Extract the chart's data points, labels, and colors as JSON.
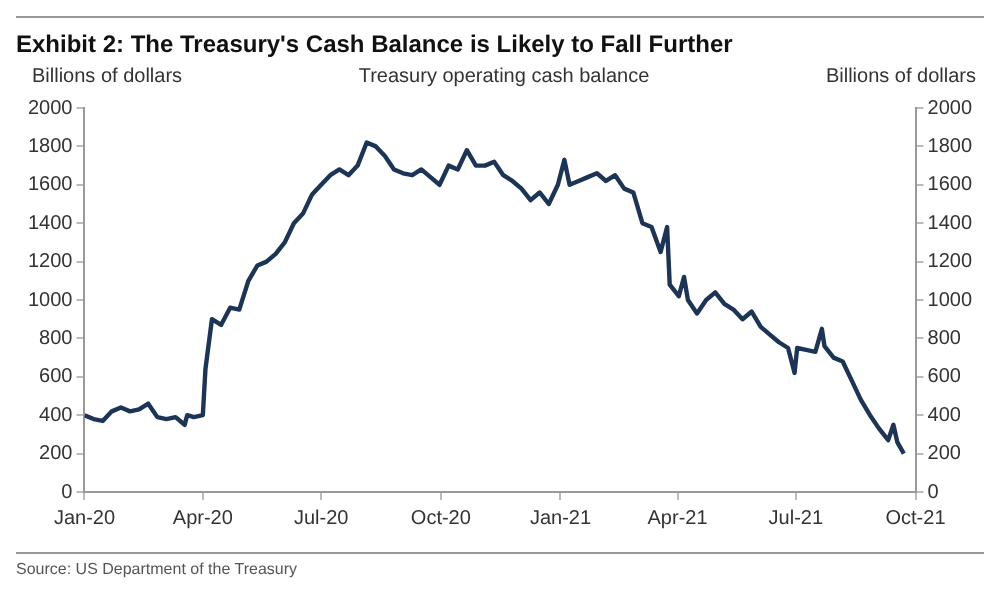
{
  "chart_data": {
    "type": "line",
    "title": "Exhibit 2: The Treasury's Cash Balance is Likely to Fall Further",
    "subtitle": "Treasury operating cash balance",
    "ylabel": "Billions of dollars",
    "y2label": "Billions of dollars",
    "annotations": [
      "Source: US Department of the Treasury"
    ],
    "x": [
      "2020-01-01",
      "2020-01-08",
      "2020-01-15",
      "2020-01-22",
      "2020-01-29",
      "2020-02-05",
      "2020-02-12",
      "2020-02-19",
      "2020-02-26",
      "2020-03-04",
      "2020-03-11",
      "2020-03-18",
      "2020-03-20",
      "2020-03-25",
      "2020-04-01",
      "2020-04-03",
      "2020-04-08",
      "2020-04-15",
      "2020-04-22",
      "2020-04-29",
      "2020-05-06",
      "2020-05-13",
      "2020-05-20",
      "2020-05-27",
      "2020-06-03",
      "2020-06-10",
      "2020-06-17",
      "2020-06-24",
      "2020-07-01",
      "2020-07-08",
      "2020-07-15",
      "2020-07-22",
      "2020-07-29",
      "2020-08-05",
      "2020-08-12",
      "2020-08-19",
      "2020-08-26",
      "2020-09-02",
      "2020-09-09",
      "2020-09-16",
      "2020-09-23",
      "2020-09-30",
      "2020-10-07",
      "2020-10-14",
      "2020-10-21",
      "2020-10-28",
      "2020-11-04",
      "2020-11-11",
      "2020-11-18",
      "2020-11-25",
      "2020-12-02",
      "2020-12-09",
      "2020-12-16",
      "2020-12-23",
      "2020-12-30",
      "2021-01-04",
      "2021-01-08",
      "2021-01-15",
      "2021-01-22",
      "2021-01-29",
      "2021-02-05",
      "2021-02-12",
      "2021-02-19",
      "2021-02-26",
      "2021-03-05",
      "2021-03-12",
      "2021-03-19",
      "2021-03-24",
      "2021-03-26",
      "2021-04-02",
      "2021-04-06",
      "2021-04-09",
      "2021-04-16",
      "2021-04-23",
      "2021-04-30",
      "2021-05-07",
      "2021-05-14",
      "2021-05-21",
      "2021-05-28",
      "2021-06-04",
      "2021-06-11",
      "2021-06-18",
      "2021-06-25",
      "2021-06-30",
      "2021-07-02",
      "2021-07-09",
      "2021-07-16",
      "2021-07-21",
      "2021-07-23",
      "2021-07-30",
      "2021-08-06",
      "2021-08-13",
      "2021-08-20",
      "2021-08-27",
      "2021-09-03",
      "2021-09-10",
      "2021-09-14",
      "2021-09-17",
      "2021-09-22"
    ],
    "series": [
      {
        "color": "#1c3557",
        "values": [
          400,
          380,
          370,
          420,
          440,
          420,
          430,
          460,
          390,
          380,
          390,
          350,
          400,
          390,
          400,
          640,
          900,
          870,
          960,
          950,
          1100,
          1180,
          1200,
          1240,
          1300,
          1400,
          1450,
          1550,
          1600,
          1650,
          1680,
          1650,
          1700,
          1820,
          1800,
          1750,
          1680,
          1660,
          1650,
          1680,
          1640,
          1600,
          1700,
          1680,
          1780,
          1700,
          1700,
          1720,
          1650,
          1620,
          1580,
          1520,
          1560,
          1500,
          1600,
          1730,
          1600,
          1620,
          1640,
          1660,
          1620,
          1650,
          1580,
          1560,
          1400,
          1380,
          1250,
          1380,
          1080,
          1020,
          1120,
          1000,
          930,
          1000,
          1040,
          980,
          950,
          900,
          940,
          860,
          820,
          780,
          750,
          620,
          750,
          740,
          730,
          850,
          760,
          700,
          680,
          580,
          480,
          400,
          330,
          270,
          350,
          260,
          200
        ]
      }
    ],
    "xlim": [
      "2020-01-01",
      "2021-10-01"
    ],
    "xticks": [
      {
        "value": "2020-01-01",
        "label": "Jan-20"
      },
      {
        "value": "2020-04-01",
        "label": "Apr-20"
      },
      {
        "value": "2020-07-01",
        "label": "Jul-20"
      },
      {
        "value": "2020-10-01",
        "label": "Oct-20"
      },
      {
        "value": "2021-01-01",
        "label": "Jan-21"
      },
      {
        "value": "2021-04-01",
        "label": "Apr-21"
      },
      {
        "value": "2021-07-01",
        "label": "Jul-21"
      },
      {
        "value": "2021-10-01",
        "label": "Oct-21"
      }
    ],
    "ylim": [
      0,
      2000
    ],
    "yticks": [
      0,
      200,
      400,
      600,
      800,
      1000,
      1200,
      1400,
      1600,
      1800,
      2000
    ],
    "y2lim": [
      0,
      2000
    ],
    "y2ticks": [
      0,
      200,
      400,
      600,
      800,
      1000,
      1200,
      1400,
      1600,
      1800,
      2000
    ],
    "grid": false,
    "legend": false,
    "marker": "none",
    "line_style": "solid"
  }
}
